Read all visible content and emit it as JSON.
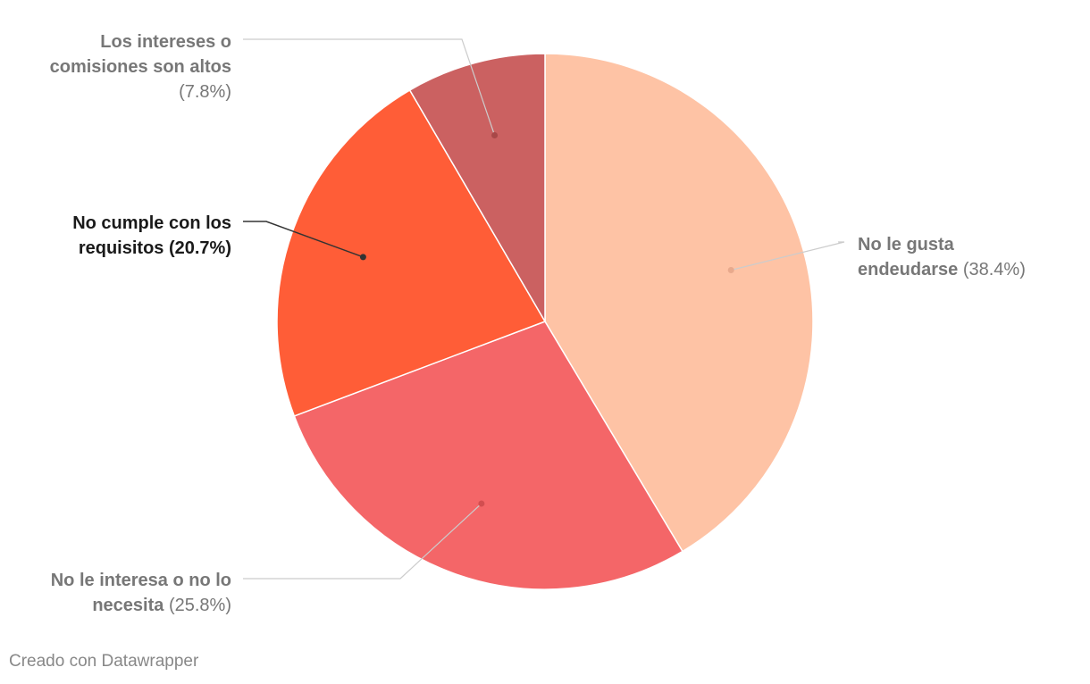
{
  "chart_data": {
    "type": "pie",
    "title": "",
    "slices": [
      {
        "label_lines": [
          "No le gusta",
          "endeudarse"
        ],
        "value": 38.4,
        "pct_text": "(38.4%)",
        "color": "#fec3a5",
        "text_color": "#777777",
        "line_color": "#cccccc",
        "dot_color": "#e8a98c",
        "highlight": false
      },
      {
        "label_lines": [
          "No le interesa o no lo",
          "necesita"
        ],
        "value": 25.8,
        "pct_text": "(25.8%)",
        "color": "#f46668",
        "text_color": "#777777",
        "line_color": "#cccccc",
        "dot_color": "#d24e50",
        "highlight": false
      },
      {
        "label_lines": [
          "No cumple con los",
          "requisitos"
        ],
        "value": 20.7,
        "pct_text": "(20.7%)",
        "color": "#ff5d37",
        "text_color": "#1a1a1a",
        "line_color": "#333333",
        "dot_color": "#333333",
        "highlight": true
      },
      {
        "label_lines": [
          "Los intereses o",
          "comisiones son altos"
        ],
        "value": 7.8,
        "pct_text": "(7.8%)",
        "color": "#cb6161",
        "text_color": "#777777",
        "line_color": "#cccccc",
        "dot_color": "#a84848",
        "highlight": false
      }
    ]
  },
  "footer": {
    "text": "Creado con Datawrapper"
  }
}
